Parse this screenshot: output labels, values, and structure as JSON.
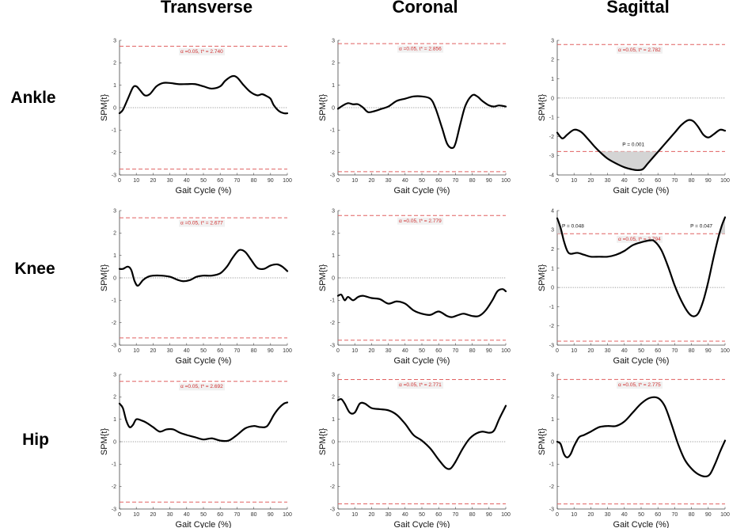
{
  "figure": {
    "column_titles": [
      "Transverse",
      "Coronal",
      "Sagittal"
    ],
    "row_titles": [
      "Ankle",
      "Knee",
      "Hip"
    ]
  },
  "chart_data": [
    {
      "type": "line",
      "row": "Ankle",
      "column": "Transverse",
      "xlabel": "Gait Cycle (%)",
      "ylabel": "SPM{t}",
      "xlim": [
        0,
        100
      ],
      "ylim": [
        -3,
        3
      ],
      "yticks": [
        -3,
        -2,
        -1,
        0,
        1,
        2,
        3
      ],
      "xticks": [
        0,
        10,
        20,
        30,
        40,
        50,
        60,
        70,
        80,
        90,
        100
      ],
      "threshold_label": "α =0.05,    t* = 2.740",
      "threshold": 2.74,
      "x": [
        0,
        2,
        5,
        8,
        10,
        12,
        15,
        18,
        22,
        26,
        30,
        35,
        40,
        45,
        50,
        55,
        60,
        63,
        67,
        70,
        74,
        78,
        82,
        85,
        88,
        90,
        92,
        95,
        98,
        100
      ],
      "y": [
        -0.25,
        -0.1,
        0.4,
        0.9,
        0.95,
        0.8,
        0.55,
        0.6,
        0.95,
        1.1,
        1.1,
        1.05,
        1.05,
        1.05,
        0.95,
        0.85,
        0.95,
        1.2,
        1.4,
        1.35,
        1.0,
        0.7,
        0.55,
        0.6,
        0.5,
        0.4,
        0.1,
        -0.15,
        -0.25,
        -0.25
      ],
      "clusters": []
    },
    {
      "type": "line",
      "row": "Ankle",
      "column": "Coronal",
      "xlabel": "Gait Cycle (%)",
      "ylabel": "SPM{t}",
      "xlim": [
        0,
        100
      ],
      "ylim": [
        -3,
        3
      ],
      "yticks": [
        -3,
        -2,
        -1,
        0,
        1,
        2,
        3
      ],
      "xticks": [
        0,
        10,
        20,
        30,
        40,
        50,
        60,
        70,
        80,
        90,
        100
      ],
      "threshold_label": "α =0.05,    t* = 2.856",
      "threshold": 2.856,
      "x": [
        0,
        3,
        6,
        9,
        12,
        15,
        18,
        22,
        26,
        30,
        35,
        40,
        45,
        50,
        55,
        58,
        62,
        65,
        68,
        70,
        73,
        76,
        80,
        83,
        86,
        90,
        93,
        96,
        100
      ],
      "y": [
        -0.05,
        0.1,
        0.2,
        0.15,
        0.15,
        0.0,
        -0.2,
        -0.15,
        -0.05,
        0.05,
        0.3,
        0.4,
        0.5,
        0.5,
        0.4,
        0.0,
        -0.9,
        -1.6,
        -1.8,
        -1.6,
        -0.7,
        0.1,
        0.55,
        0.5,
        0.3,
        0.1,
        0.05,
        0.1,
        0.05
      ],
      "clusters": []
    },
    {
      "type": "line",
      "row": "Ankle",
      "column": "Sagittal",
      "xlabel": "Gait Cycle (%)",
      "ylabel": "SPM{t}",
      "xlim": [
        0,
        100
      ],
      "ylim": [
        -4,
        3
      ],
      "yticks": [
        -4,
        -3,
        -2,
        -1,
        0,
        1,
        2,
        3
      ],
      "xticks": [
        0,
        10,
        20,
        30,
        40,
        50,
        60,
        70,
        80,
        90,
        100
      ],
      "threshold_label": "α =0.05,    t* = 2.782",
      "threshold": 2.782,
      "x": [
        0,
        3,
        6,
        10,
        14,
        18,
        22,
        26,
        30,
        35,
        40,
        45,
        48,
        51,
        54,
        57,
        60,
        65,
        70,
        74,
        78,
        81,
        84,
        87,
        90,
        93,
        97,
        100
      ],
      "y": [
        -1.8,
        -2.1,
        -1.9,
        -1.65,
        -1.75,
        -2.1,
        -2.5,
        -2.85,
        -3.15,
        -3.4,
        -3.6,
        -3.72,
        -3.75,
        -3.7,
        -3.4,
        -3.1,
        -2.8,
        -2.3,
        -1.8,
        -1.4,
        -1.15,
        -1.2,
        -1.5,
        -1.9,
        -2.05,
        -1.9,
        -1.65,
        -1.7
      ],
      "clusters": [
        {
          "start": 26,
          "end": 61,
          "label": "P = 0.001",
          "side": "neg"
        }
      ]
    },
    {
      "type": "line",
      "row": "Knee",
      "column": "Transverse",
      "xlabel": "Gait Cycle (%)",
      "ylabel": "SPM{t}",
      "xlim": [
        0,
        100
      ],
      "ylim": [
        -3,
        3
      ],
      "yticks": [
        -3,
        -2,
        -1,
        0,
        1,
        2,
        3
      ],
      "xticks": [
        0,
        10,
        20,
        30,
        40,
        50,
        60,
        70,
        80,
        90,
        100
      ],
      "threshold_label": "α =0.05,    t* = 2.677",
      "threshold": 2.677,
      "x": [
        0,
        2,
        5,
        7,
        9,
        11,
        14,
        17,
        20,
        25,
        30,
        35,
        38,
        42,
        46,
        50,
        55,
        60,
        64,
        67,
        70,
        72,
        75,
        78,
        82,
        86,
        90,
        94,
        97,
        100
      ],
      "y": [
        0.4,
        0.4,
        0.5,
        0.35,
        -0.15,
        -0.35,
        -0.1,
        0.05,
        0.1,
        0.1,
        0.05,
        -0.1,
        -0.15,
        -0.1,
        0.05,
        0.1,
        0.1,
        0.2,
        0.5,
        0.85,
        1.15,
        1.25,
        1.15,
        0.85,
        0.45,
        0.4,
        0.55,
        0.6,
        0.5,
        0.3
      ],
      "clusters": []
    },
    {
      "type": "line",
      "row": "Knee",
      "column": "Coronal",
      "xlabel": "Gait Cycle (%)",
      "ylabel": "SPM{t}",
      "xlim": [
        0,
        100
      ],
      "ylim": [
        -3,
        3
      ],
      "yticks": [
        -3,
        -2,
        -1,
        0,
        1,
        2,
        3
      ],
      "xticks": [
        0,
        10,
        20,
        30,
        40,
        50,
        60,
        70,
        80,
        90,
        100
      ],
      "threshold_label": "α =0.05,    t* = 2.779",
      "threshold": 2.779,
      "x": [
        0,
        2,
        4,
        6,
        9,
        12,
        15,
        20,
        25,
        30,
        35,
        40,
        45,
        50,
        55,
        60,
        65,
        68,
        72,
        75,
        80,
        84,
        88,
        92,
        95,
        98,
        100
      ],
      "y": [
        -0.8,
        -0.75,
        -1.0,
        -0.85,
        -1.0,
        -0.85,
        -0.8,
        -0.9,
        -0.95,
        -1.15,
        -1.05,
        -1.15,
        -1.45,
        -1.6,
        -1.65,
        -1.5,
        -1.7,
        -1.75,
        -1.65,
        -1.6,
        -1.7,
        -1.7,
        -1.45,
        -1.0,
        -0.6,
        -0.5,
        -0.6
      ],
      "clusters": []
    },
    {
      "type": "line",
      "row": "Knee",
      "column": "Sagittal",
      "xlabel": "Gait Cycle (%)",
      "ylabel": "SPM{t}",
      "xlim": [
        0,
        100
      ],
      "ylim": [
        -3,
        4
      ],
      "yticks": [
        -3,
        -2,
        -1,
        0,
        1,
        2,
        3,
        4
      ],
      "xticks": [
        0,
        10,
        20,
        30,
        40,
        50,
        60,
        70,
        80,
        90,
        100
      ],
      "threshold_label": "α =0.05,    t* = 2.794",
      "threshold": 2.794,
      "x": [
        0,
        2,
        4,
        6,
        8,
        12,
        16,
        20,
        25,
        30,
        35,
        40,
        45,
        50,
        55,
        58,
        62,
        66,
        70,
        74,
        78,
        81,
        84,
        87,
        90,
        93,
        96,
        98,
        100
      ],
      "y": [
        3.6,
        3.1,
        2.4,
        1.9,
        1.75,
        1.8,
        1.7,
        1.6,
        1.6,
        1.6,
        1.7,
        1.9,
        2.2,
        2.35,
        2.45,
        2.4,
        1.95,
        1.1,
        0.1,
        -0.7,
        -1.3,
        -1.5,
        -1.35,
        -0.7,
        0.3,
        1.5,
        2.6,
        3.2,
        3.65
      ],
      "clusters": [
        {
          "start": 0,
          "end": 3.5,
          "label": "P = 0.048",
          "side": "pos"
        },
        {
          "start": 96,
          "end": 100,
          "label": "P = 0.047",
          "side": "pos"
        }
      ]
    },
    {
      "type": "line",
      "row": "Hip",
      "column": "Transverse",
      "xlabel": "Gait Cycle (%)",
      "ylabel": "SPM{t}",
      "xlim": [
        0,
        100
      ],
      "ylim": [
        -3,
        3
      ],
      "yticks": [
        -3,
        -2,
        -1,
        0,
        1,
        2,
        3
      ],
      "xticks": [
        0,
        10,
        20,
        30,
        40,
        50,
        60,
        70,
        80,
        90,
        100
      ],
      "threshold_label": "α =0.05,    t* = 2.692",
      "threshold": 2.692,
      "x": [
        0,
        2,
        4,
        6,
        8,
        10,
        13,
        16,
        20,
        24,
        28,
        32,
        36,
        40,
        45,
        50,
        55,
        60,
        65,
        70,
        75,
        80,
        84,
        88,
        92,
        95,
        98,
        100
      ],
      "y": [
        1.7,
        1.5,
        0.95,
        0.65,
        0.75,
        1.0,
        0.95,
        0.85,
        0.65,
        0.45,
        0.55,
        0.55,
        0.4,
        0.3,
        0.2,
        0.1,
        0.15,
        0.05,
        0.05,
        0.3,
        0.6,
        0.7,
        0.65,
        0.7,
        1.2,
        1.5,
        1.7,
        1.75
      ],
      "clusters": []
    },
    {
      "type": "line",
      "row": "Hip",
      "column": "Coronal",
      "xlabel": "Gait Cycle (%)",
      "ylabel": "SPM{t}",
      "xlim": [
        0,
        100
      ],
      "ylim": [
        -3,
        3
      ],
      "yticks": [
        -3,
        -2,
        -1,
        0,
        1,
        2,
        3
      ],
      "xticks": [
        0,
        10,
        20,
        30,
        40,
        50,
        60,
        70,
        80,
        90,
        100
      ],
      "threshold_label": "α =0.05,    t* = 2.771",
      "threshold": 2.771,
      "x": [
        0,
        2,
        4,
        7,
        10,
        13,
        16,
        20,
        25,
        30,
        35,
        40,
        45,
        50,
        55,
        60,
        64,
        67,
        70,
        74,
        78,
        82,
        86,
        90,
        93,
        96,
        100
      ],
      "y": [
        1.85,
        1.9,
        1.7,
        1.3,
        1.3,
        1.7,
        1.7,
        1.5,
        1.45,
        1.4,
        1.2,
        0.8,
        0.3,
        0.05,
        -0.3,
        -0.8,
        -1.15,
        -1.2,
        -0.9,
        -0.35,
        0.1,
        0.35,
        0.45,
        0.4,
        0.5,
        1.0,
        1.6
      ],
      "clusters": []
    },
    {
      "type": "line",
      "row": "Hip",
      "column": "Sagittal",
      "xlabel": "Gait Cycle (%)",
      "ylabel": "SPM{t}",
      "xlim": [
        0,
        100
      ],
      "ylim": [
        -3,
        3
      ],
      "yticks": [
        -3,
        -2,
        -1,
        0,
        1,
        2,
        3
      ],
      "xticks": [
        0,
        10,
        20,
        30,
        40,
        50,
        60,
        70,
        80,
        90,
        100
      ],
      "threshold_label": "α =0.05,    t* = 2.775",
      "threshold": 2.775,
      "x": [
        0,
        2,
        4,
        6,
        8,
        10,
        13,
        16,
        20,
        25,
        30,
        35,
        40,
        45,
        50,
        55,
        60,
        64,
        68,
        72,
        76,
        80,
        84,
        88,
        91,
        94,
        97,
        100
      ],
      "y": [
        0.0,
        -0.1,
        -0.55,
        -0.7,
        -0.55,
        -0.2,
        0.2,
        0.3,
        0.45,
        0.65,
        0.7,
        0.7,
        0.9,
        1.3,
        1.7,
        1.95,
        1.95,
        1.6,
        0.8,
        -0.1,
        -0.8,
        -1.2,
        -1.45,
        -1.55,
        -1.45,
        -1.0,
        -0.45,
        0.05
      ],
      "clusters": []
    }
  ]
}
